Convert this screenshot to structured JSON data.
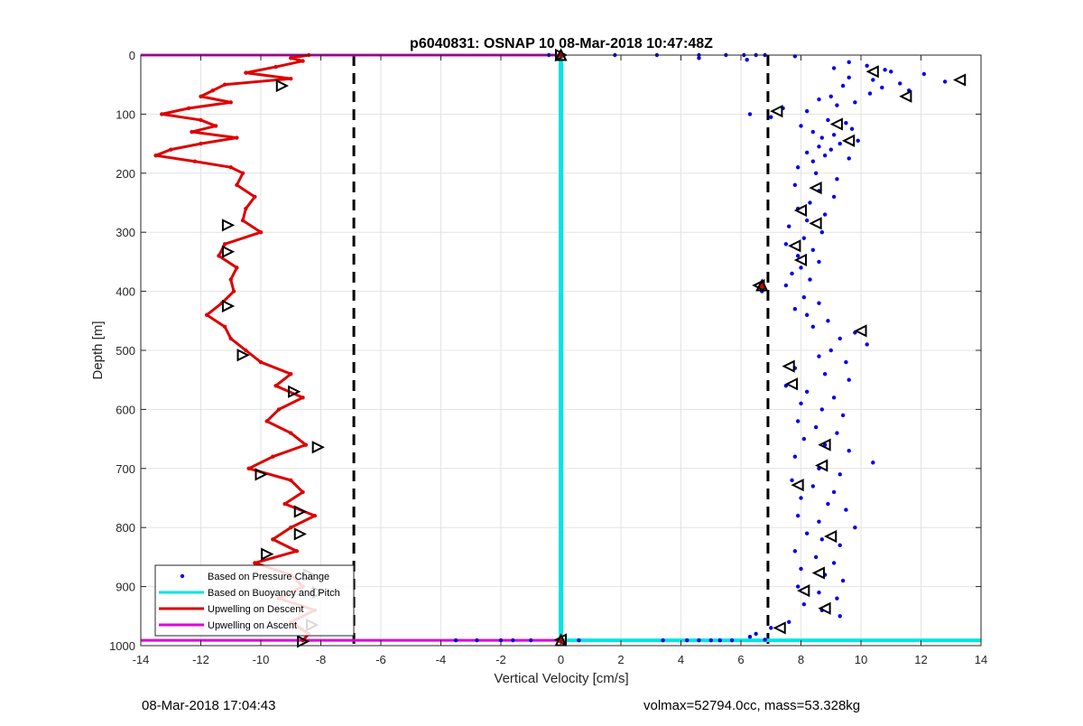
{
  "chart_data": {
    "type": "scatter",
    "title": "p6040831: OSNAP 10 08-Mar-2018 10:47:48Z",
    "xlabel": "Vertical Velocity [cm/s]",
    "ylabel": "Depth [m]",
    "xlim": [
      -14,
      14
    ],
    "ylim": [
      1000,
      0
    ],
    "y_reversed": true,
    "grid": true,
    "xticks": [
      -14,
      -12,
      -10,
      -8,
      -6,
      -4,
      -2,
      0,
      2,
      4,
      6,
      8,
      10,
      12,
      14
    ],
    "yticks": [
      0,
      100,
      200,
      300,
      400,
      500,
      600,
      700,
      800,
      900,
      1000
    ],
    "legend_position": "bottom-left",
    "legend": [
      {
        "label": "Based on Pressure Change",
        "color": "#0000ff",
        "style": "dot"
      },
      {
        "label": "Based on Buoyancy and Pitch",
        "color": "#00e5e5",
        "style": "line"
      },
      {
        "label": "Upwelling on Descent",
        "color": "#dd0000",
        "style": "line"
      },
      {
        "label": "Upwelling on Ascent",
        "color": "#dd00dd",
        "style": "line"
      }
    ],
    "reference_lines": [
      {
        "x": -6.9,
        "color": "#000000",
        "style": "dashed"
      },
      {
        "x": 6.9,
        "color": "#000000",
        "style": "dashed"
      }
    ],
    "buoyancy_pitch": {
      "depth": [
        0,
        991
      ],
      "value": [
        0.0,
        0.0
      ],
      "bottom_line": {
        "depth": 991,
        "x_range": [
          0,
          14
        ]
      }
    },
    "upwelling_ascent": {
      "depth": [
        0,
        991
      ],
      "x_range": [
        -14,
        0
      ]
    },
    "upwelling_descent": {
      "depth": [
        0,
        5,
        10,
        20,
        30,
        40,
        50,
        60,
        70,
        80,
        90,
        100,
        110,
        120,
        130,
        140,
        150,
        160,
        170,
        180,
        190,
        200,
        220,
        240,
        260,
        280,
        300,
        320,
        340,
        360,
        380,
        400,
        420,
        440,
        460,
        480,
        500,
        520,
        540,
        560,
        580,
        600,
        620,
        640,
        660,
        680,
        700,
        720,
        740,
        760,
        780,
        800,
        820,
        840,
        860,
        880,
        900,
        920,
        940,
        960,
        980,
        991
      ],
      "value": [
        -8.4,
        -9.0,
        -8.6,
        -9.5,
        -10.5,
        -9.0,
        -11.2,
        -11.6,
        -12.0,
        -11.0,
        -12.4,
        -13.3,
        -12.0,
        -11.5,
        -12.3,
        -10.8,
        -12.0,
        -13.0,
        -13.5,
        -12.2,
        -11.0,
        -10.6,
        -10.8,
        -10.2,
        -10.5,
        -10.6,
        -10.0,
        -11.2,
        -11.4,
        -10.8,
        -11.0,
        -10.9,
        -11.3,
        -11.8,
        -11.2,
        -11.0,
        -10.5,
        -10.0,
        -9.0,
        -9.5,
        -8.6,
        -9.4,
        -9.8,
        -9.0,
        -8.5,
        -9.6,
        -10.4,
        -9.0,
        -8.6,
        -9.2,
        -8.2,
        -9.0,
        -9.6,
        -8.8,
        -10.2,
        -9.0,
        -8.6,
        -9.4,
        -8.2,
        -9.0,
        -8.4,
        -8.6
      ]
    },
    "pressure_change": {
      "depth": [
        2,
        5,
        8,
        12,
        18,
        22,
        25,
        28,
        32,
        38,
        42,
        45,
        48,
        52,
        55,
        60,
        65,
        70,
        75,
        80,
        85,
        90,
        95,
        100,
        105,
        110,
        115,
        120,
        125,
        130,
        135,
        140,
        145,
        150,
        155,
        160,
        165,
        170,
        175,
        180,
        190,
        200,
        210,
        220,
        230,
        240,
        250,
        260,
        270,
        280,
        290,
        300,
        310,
        320,
        330,
        340,
        350,
        360,
        370,
        380,
        390,
        400,
        410,
        420,
        430,
        440,
        450,
        460,
        470,
        480,
        490,
        500,
        510,
        520,
        530,
        540,
        550,
        560,
        570,
        580,
        590,
        600,
        610,
        620,
        630,
        640,
        650,
        660,
        670,
        680,
        690,
        700,
        710,
        720,
        730,
        740,
        750,
        760,
        770,
        780,
        790,
        800,
        810,
        820,
        830,
        840,
        850,
        860,
        870,
        880,
        890,
        900,
        910,
        920,
        930,
        940,
        950,
        960,
        970,
        980,
        985,
        990
      ],
      "value": [
        7.8,
        4.6,
        6.2,
        9.6,
        10.2,
        9.1,
        10.8,
        11.0,
        12.1,
        9.6,
        10.4,
        12.8,
        11.3,
        9.4,
        10.7,
        11.6,
        10.3,
        9.0,
        8.6,
        9.8,
        9.2,
        7.4,
        8.2,
        6.3,
        7.0,
        8.9,
        9.5,
        8.0,
        9.7,
        8.4,
        9.1,
        8.7,
        9.9,
        9.3,
        8.6,
        9.0,
        8.2,
        8.8,
        9.6,
        8.4,
        7.9,
        8.5,
        9.2,
        7.8,
        8.6,
        9.1,
        8.3,
        7.9,
        8.8,
        8.2,
        7.6,
        8.7,
        8.1,
        7.5,
        8.4,
        7.9,
        8.6,
        8.0,
        7.7,
        8.3,
        7.5,
        6.7,
        8.1,
        8.6,
        7.8,
        8.2,
        8.9,
        8.4,
        9.8,
        9.3,
        10.2,
        9.0,
        8.6,
        9.5,
        7.8,
        8.8,
        9.6,
        7.5,
        8.2,
        9.1,
        8.0,
        8.7,
        9.4,
        7.9,
        8.5,
        9.2,
        8.1,
        8.8,
        9.6,
        7.8,
        10.4,
        8.6,
        9.3,
        7.7,
        8.4,
        9.1,
        8.0,
        8.9,
        9.5,
        7.9,
        8.6,
        9.8,
        8.2,
        8.7,
        9.3,
        7.8,
        8.5,
        9.1,
        8.0,
        8.8,
        9.4,
        7.9,
        8.6,
        9.2,
        8.1,
        8.7,
        9.3,
        7.6,
        7.0,
        6.5,
        6.3,
        6.8
      ],
      "surface_points": {
        "depth": 0,
        "value": [
          -0.4,
          1.8,
          4.6,
          6.1,
          6.8,
          6.5,
          5.5,
          3.2
        ]
      },
      "bottom_points": {
        "depth": 991,
        "value": [
          -3.5,
          -2.8,
          -2.0,
          -1.6,
          -1.0,
          0.6,
          3.4,
          4.2,
          4.6,
          5.0,
          5.3,
          5.7
        ]
      }
    },
    "descent_markers": {
      "depth": [
        0,
        52,
        288,
        333,
        425,
        508,
        570,
        664,
        710,
        773,
        811,
        845,
        880,
        910,
        965,
        993
      ],
      "value": [
        0,
        -9.3,
        -11.1,
        -11.1,
        -11.1,
        -10.6,
        -8.9,
        -8.1,
        -10.0,
        -8.7,
        -8.7,
        -9.8,
        -8.4,
        -8.1,
        -8.3,
        -8.6
      ]
    },
    "ascent_markers": {
      "depth": [
        28,
        42,
        70,
        95,
        117,
        145,
        225,
        263,
        285,
        323,
        347,
        390,
        467,
        527,
        557,
        660,
        695,
        728,
        815,
        877,
        907,
        937,
        970,
        990
      ],
      "value": [
        10.4,
        13.3,
        11.5,
        7.2,
        9.2,
        9.6,
        8.5,
        8.0,
        8.5,
        7.8,
        8.0,
        6.6,
        10.0,
        7.6,
        7.7,
        8.8,
        8.7,
        7.9,
        9.0,
        8.6,
        8.1,
        8.8,
        7.3,
        0
      ]
    },
    "misc_markers": {
      "points": [
        {
          "x": 6.7,
          "y": 390
        },
        {
          "x": 0,
          "y": 991
        },
        {
          "x": 0,
          "y": 0
        }
      ]
    }
  },
  "footer": {
    "left": "08-Mar-2018 17:04:43",
    "right": "volmax=52794.0cc, mass=53.328kg"
  }
}
